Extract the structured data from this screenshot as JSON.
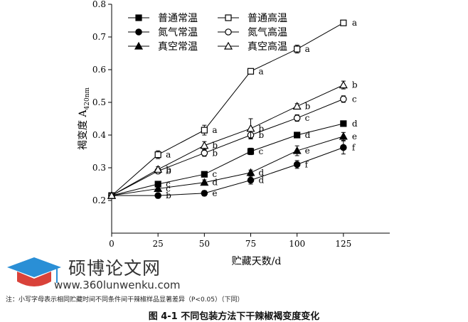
{
  "chart_data": {
    "type": "line",
    "title": "",
    "xlabel": "贮藏天数/d",
    "ylabel": "褐变度 A",
    "ylabel_sub": "420nm",
    "xlim": [
      0,
      150
    ],
    "ylim": [
      0.1,
      0.8
    ],
    "xticks": [
      0,
      25,
      50,
      75,
      100,
      125
    ],
    "yticks": [
      0.2,
      0.3,
      0.4,
      0.5,
      0.6,
      0.7,
      0.8
    ],
    "series": [
      {
        "name": "普通常温",
        "marker": "square",
        "fill": "filled",
        "x": [
          0,
          25,
          50,
          75,
          100,
          125
        ],
        "y": [
          0.215,
          0.25,
          0.28,
          0.35,
          0.4,
          0.435
        ],
        "err": [
          0,
          0.008,
          0.008,
          0.01,
          0.008,
          0.008
        ],
        "labels": [
          "",
          "c",
          "c",
          "c",
          "d",
          "d"
        ]
      },
      {
        "name": "普通高温",
        "marker": "square",
        "fill": "open",
        "x": [
          0,
          25,
          50,
          75,
          100,
          125
        ],
        "y": [
          0.215,
          0.34,
          0.415,
          0.595,
          0.663,
          0.743
        ],
        "err": [
          0,
          0.012,
          0.015,
          0.006,
          0.012,
          0.008
        ],
        "labels": [
          "",
          "a",
          "a",
          "a",
          "a",
          "a"
        ]
      },
      {
        "name": "氮气常温",
        "marker": "circle",
        "fill": "filled",
        "x": [
          0,
          25,
          50,
          75,
          100,
          125
        ],
        "y": [
          0.215,
          0.215,
          0.222,
          0.262,
          0.31,
          0.362
        ],
        "err": [
          0,
          0.008,
          0.008,
          0.012,
          0.012,
          0.02
        ],
        "labels": [
          "",
          "b",
          "e",
          "d",
          "f",
          "f"
        ]
      },
      {
        "name": "氮气高温",
        "marker": "circle",
        "fill": "open",
        "x": [
          0,
          25,
          50,
          75,
          100,
          125
        ],
        "y": [
          0.215,
          0.29,
          0.345,
          0.4,
          0.452,
          0.51
        ],
        "err": [
          0,
          0.008,
          0.01,
          0.012,
          0.01,
          0.01
        ],
        "labels": [
          "",
          "b",
          "b",
          "b",
          "c",
          "c"
        ]
      },
      {
        "name": "真空常温",
        "marker": "triangle",
        "fill": "filled",
        "x": [
          0,
          25,
          50,
          75,
          100,
          125
        ],
        "y": [
          0.215,
          0.236,
          0.255,
          0.285,
          0.352,
          0.396
        ],
        "err": [
          0,
          0.008,
          0.008,
          0.008,
          0.015,
          0.012
        ],
        "labels": [
          "",
          "c",
          "d",
          "d",
          "e",
          "e"
        ]
      },
      {
        "name": "真空高温",
        "marker": "triangle",
        "fill": "open",
        "x": [
          0,
          25,
          50,
          75,
          100,
          125
        ],
        "y": [
          0.215,
          0.295,
          0.368,
          0.42,
          0.488,
          0.553
        ],
        "err": [
          0,
          0.008,
          0.012,
          0.03,
          0.008,
          0.012
        ],
        "labels": [
          "",
          "b",
          "b",
          "b",
          "b",
          "b"
        ]
      }
    ]
  },
  "note": "注：小写字母表示相同贮藏时间不同条件间干辣椒样品显著差异（P<0.05）（下同）",
  "caption": "图 4-1 不同包装方法下干辣椒褐变度变化",
  "watermark": {
    "text": "硕博论文网",
    "url": "www.360lunwenku.com",
    "color": "#2a8fd6"
  }
}
